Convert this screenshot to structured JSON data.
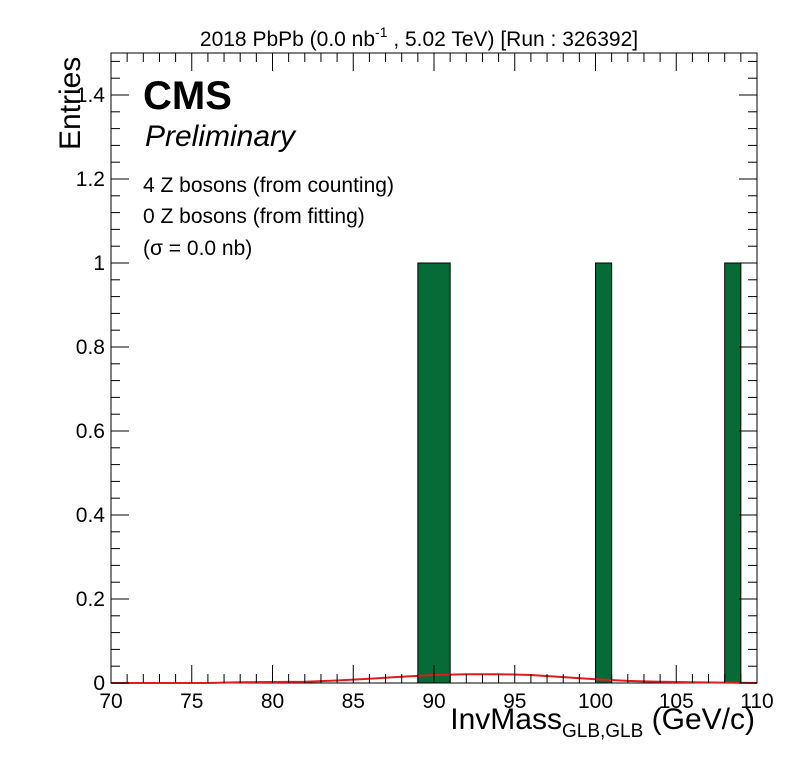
{
  "chart_data": {
    "type": "bar",
    "title": {
      "prefix": "2018 PbPb (0.0 nb",
      "superscript": "-1",
      "suffix": " , 5.02 TeV) [Run : 326392]"
    },
    "xlabel": {
      "main": "InvMass",
      "subscript": "GLB,GLB",
      "unit": " (GeV/c)"
    },
    "ylabel": "Entries",
    "xlim": [
      70,
      110
    ],
    "ylim": [
      0,
      1.5
    ],
    "xticks": [
      "70",
      "75",
      "80",
      "85",
      "90",
      "95",
      "100",
      "105",
      "110"
    ],
    "yticks": [
      "0",
      "0.2",
      "0.4",
      "0.6",
      "0.8",
      "1",
      "1.2",
      "1.4"
    ],
    "grid": false,
    "bars": [
      {
        "x0": 89,
        "x1": 91,
        "value": 1
      },
      {
        "x0": 100,
        "x1": 101,
        "value": 1
      },
      {
        "x0": 108,
        "x1": 109,
        "value": 1
      }
    ],
    "bar_color": "#066b36",
    "fit_color": "#e41a1c",
    "fit_curve": [
      [
        70,
        0.0
      ],
      [
        76,
        0.0
      ],
      [
        78,
        0.002
      ],
      [
        82,
        0.003
      ],
      [
        84,
        0.006
      ],
      [
        86,
        0.01
      ],
      [
        88,
        0.015
      ],
      [
        90,
        0.019
      ],
      [
        92,
        0.021
      ],
      [
        94,
        0.021
      ],
      [
        96,
        0.019
      ],
      [
        98,
        0.014
      ],
      [
        100,
        0.009
      ],
      [
        102,
        0.005
      ],
      [
        104,
        0.003
      ],
      [
        106,
        0.002
      ],
      [
        108,
        0.001
      ],
      [
        110,
        0.0
      ]
    ],
    "annotations": {
      "brand": "CMS",
      "status": "Preliminary",
      "counting": "4 Z bosons (from counting)",
      "fitting": "0 Z bosons (from fitting)",
      "sigma": "(σ = 0.0 nb)"
    }
  }
}
